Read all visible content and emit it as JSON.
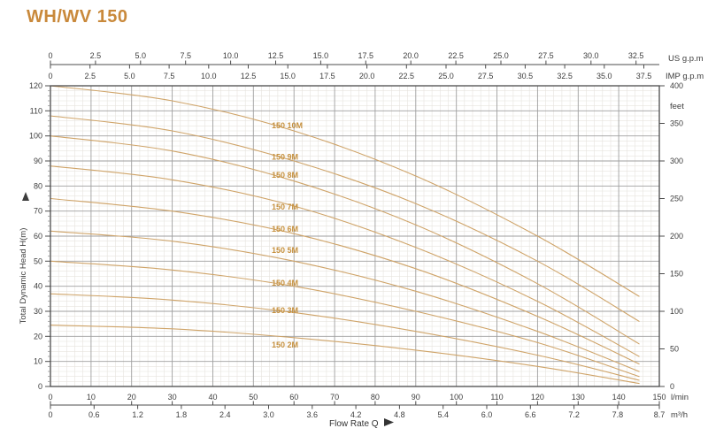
{
  "page": {
    "title": "WH/WV 150"
  },
  "chart_data": {
    "type": "line",
    "title": "WH/WV 150",
    "x_axis_bottom": {
      "label": "Flow Rate Q",
      "units": [
        {
          "name": "l/min",
          "ticks": [
            "0",
            "10",
            "20",
            "30",
            "40",
            "50",
            "60",
            "70",
            "80",
            "90",
            "100",
            "110",
            "120",
            "130",
            "140",
            "150"
          ],
          "range": [
            0,
            150
          ]
        },
        {
          "name": "m³/h",
          "ticks": [
            "0",
            "0.6",
            "1.2",
            "1.8",
            "2.4",
            "3.0",
            "3.6",
            "4.2",
            "4.8",
            "5.4",
            "6.0",
            "6.6",
            "7.2",
            "7.8",
            "8.7"
          ]
        }
      ]
    },
    "x_axis_top": {
      "units": [
        {
          "name": "US g.p.m",
          "ticks": [
            "0",
            "2.5",
            "5.0",
            "7.5",
            "10.0",
            "12.5",
            "15.0",
            "17.5",
            "20.0",
            "22.5",
            "25.0",
            "27.5",
            "30.0",
            "32.5"
          ]
        },
        {
          "name": "IMP g.p.m",
          "ticks": [
            "0",
            "2.5",
            "5.0",
            "7.5",
            "10.0",
            "12.5",
            "15.0",
            "17.5",
            "20.0",
            "22.5",
            "25.0",
            "27.5",
            "30.5",
            "32.5",
            "35.0",
            "37.5"
          ]
        }
      ]
    },
    "y_axis_left": {
      "label": "Total Dynamic Head H(m)",
      "ticks": [
        "0",
        "10",
        "20",
        "30",
        "40",
        "50",
        "60",
        "70",
        "80",
        "90",
        "100",
        "110",
        "120"
      ],
      "range": [
        0,
        120
      ]
    },
    "y_axis_right": {
      "unit": "feet",
      "ticks": [
        "0",
        "50",
        "100",
        "150",
        "200",
        "250",
        "300",
        "350",
        "400"
      ],
      "range": [
        0,
        400
      ]
    },
    "grid": {
      "minor_step_x_lmin": 2,
      "major_step_x_lmin": 10,
      "minor_step_y_m": 2,
      "major_step_y_m": 10
    },
    "series": [
      {
        "name": "150 10M",
        "points": [
          [
            0,
            120
          ],
          [
            30,
            114
          ],
          [
            60,
            102
          ],
          [
            90,
            84
          ],
          [
            120,
            60
          ],
          [
            145,
            36
          ]
        ],
        "label_at": [
          54.5,
          103
        ]
      },
      {
        "name": "150 9M",
        "points": [
          [
            0,
            108
          ],
          [
            30,
            102
          ],
          [
            60,
            90
          ],
          [
            90,
            73
          ],
          [
            120,
            50
          ],
          [
            145,
            26
          ]
        ],
        "label_at": [
          54.5,
          90.5
        ]
      },
      {
        "name": "150 8M",
        "points": [
          [
            0,
            100
          ],
          [
            30,
            94
          ],
          [
            60,
            82
          ],
          [
            90,
            64.5
          ],
          [
            120,
            41
          ],
          [
            145,
            17
          ]
        ],
        "label_at": [
          54.5,
          83.3
        ]
      },
      {
        "name": "150 7M",
        "points": [
          [
            0,
            88
          ],
          [
            30,
            82.5
          ],
          [
            60,
            72
          ],
          [
            90,
            55.5
          ],
          [
            120,
            34
          ],
          [
            145,
            12
          ]
        ],
        "label_at": [
          54.5,
          70.6
        ]
      },
      {
        "name": "150 6M",
        "points": [
          [
            0,
            75
          ],
          [
            30,
            70
          ],
          [
            60,
            61
          ],
          [
            90,
            47
          ],
          [
            120,
            28
          ],
          [
            145,
            9
          ]
        ],
        "label_at": [
          54.5,
          61.8
        ]
      },
      {
        "name": "150 5M",
        "points": [
          [
            0,
            62
          ],
          [
            30,
            58
          ],
          [
            60,
            50
          ],
          [
            90,
            38
          ],
          [
            120,
            22
          ],
          [
            145,
            6
          ]
        ],
        "label_at": [
          54.5,
          53.3
        ]
      },
      {
        "name": "150 4M",
        "points": [
          [
            0,
            50
          ],
          [
            30,
            46.5
          ],
          [
            60,
            40
          ],
          [
            90,
            30
          ],
          [
            120,
            17.5
          ],
          [
            145,
            4
          ]
        ],
        "label_at": [
          54.5,
          40.2
        ]
      },
      {
        "name": "150 3M",
        "points": [
          [
            0,
            37
          ],
          [
            30,
            34.5
          ],
          [
            60,
            29.5
          ],
          [
            90,
            22
          ],
          [
            120,
            12.5
          ],
          [
            145,
            2.5
          ]
        ],
        "label_at": [
          54.5,
          29.3
        ]
      },
      {
        "name": "150 2M",
        "points": [
          [
            0,
            24.5
          ],
          [
            30,
            23
          ],
          [
            60,
            19.5
          ],
          [
            90,
            14.5
          ],
          [
            120,
            8
          ],
          [
            145,
            1.2
          ]
        ],
        "label_at": [
          54.5,
          15.5
        ]
      }
    ],
    "colors": {
      "title": "#c9893b",
      "curve": "#cfa469",
      "curve_label": "#c6913f",
      "grid_minor": "#e6e3de",
      "grid_major": "#9f9f9f",
      "axis": "#4c4c4c",
      "text": "#3d3d3d"
    }
  }
}
